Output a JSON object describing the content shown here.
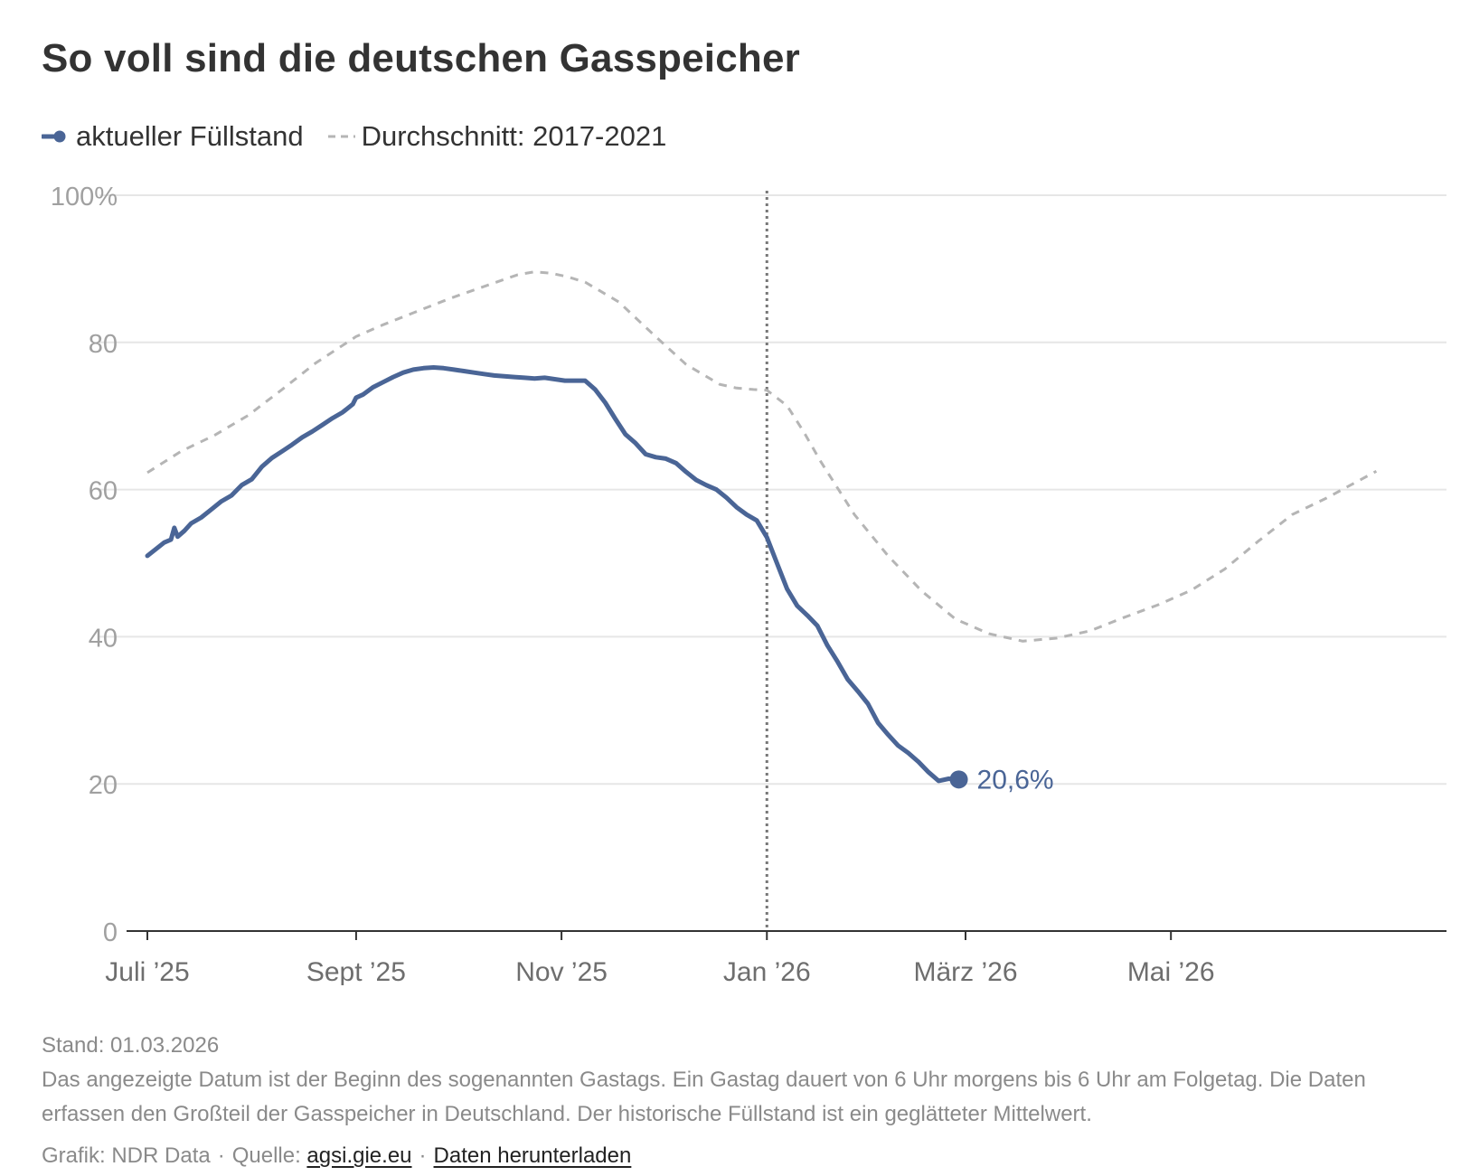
{
  "title": "So voll sind die deutschen Gasspeicher",
  "legend": {
    "current": "aktueller Füllstand",
    "average": "Durchschnitt: 2017-2021"
  },
  "colors": {
    "current": "#4a6596",
    "average": "#b5b5b5",
    "grid": "#e6e6e6",
    "axis": "#333333",
    "tick": "#a0a0a0"
  },
  "chart_data": {
    "type": "line",
    "title": "So voll sind die deutschen Gasspeicher",
    "xlabel": "",
    "ylabel": "",
    "ylim": [
      0,
      100
    ],
    "y_ticks": [
      0,
      20,
      40,
      60,
      80,
      100
    ],
    "y_tick_labels": [
      "0",
      "20",
      "40",
      "60",
      "80",
      "100%"
    ],
    "x_unit": "days since 2025-07-01",
    "x_ticks": [
      0,
      62,
      123,
      184,
      243,
      304
    ],
    "x_tick_labels": [
      "Juli ’25",
      "Sept ’25",
      "Nov ’25",
      "Jan ’26",
      "März ’26",
      "Mai ’26"
    ],
    "xlim": [
      -5,
      370
    ],
    "reference_line_x": 184,
    "end_label": "20,6%",
    "series": [
      {
        "name": "aktueller Füllstand",
        "x": [
          0,
          5,
          7,
          8,
          9,
          11,
          13,
          16,
          19,
          22,
          25,
          28,
          31,
          34,
          37,
          40,
          43,
          46,
          49,
          52,
          55,
          58,
          61,
          62,
          64,
          67,
          70,
          73,
          76,
          79,
          82,
          85,
          88,
          91,
          94,
          97,
          100,
          103,
          106,
          109,
          112,
          115,
          118,
          121,
          124,
          127,
          130,
          133,
          136,
          139,
          142,
          145,
          148,
          151,
          154,
          157,
          160,
          163,
          166,
          169,
          172,
          175,
          178,
          181,
          184,
          187,
          190,
          193,
          196,
          199,
          202,
          205,
          208,
          211,
          214,
          217,
          220,
          223,
          226,
          229,
          232,
          235,
          238,
          241
        ],
        "values": [
          51.0,
          52.8,
          53.2,
          54.8,
          53.6,
          54.4,
          55.4,
          56.2,
          57.3,
          58.4,
          59.2,
          60.6,
          61.4,
          63.1,
          64.3,
          65.2,
          66.1,
          67.1,
          67.9,
          68.8,
          69.7,
          70.5,
          71.6,
          72.5,
          72.9,
          73.9,
          74.6,
          75.3,
          75.9,
          76.3,
          76.5,
          76.6,
          76.5,
          76.3,
          76.1,
          75.9,
          75.7,
          75.5,
          75.4,
          75.3,
          75.2,
          75.1,
          75.2,
          75.0,
          74.8,
          74.8,
          74.8,
          73.6,
          71.8,
          69.6,
          67.5,
          66.3,
          64.8,
          64.4,
          64.2,
          63.6,
          62.4,
          61.3,
          60.6,
          60.0,
          58.9,
          57.6,
          56.6,
          55.8,
          53.5,
          50.0,
          46.5,
          44.2,
          42.9,
          41.5,
          38.8,
          36.6,
          34.2,
          32.6,
          30.9,
          28.3,
          26.7,
          25.2,
          24.2,
          23.0,
          21.6,
          20.4,
          20.7,
          20.6
        ]
      },
      {
        "name": "Durchschnitt: 2017-2021",
        "x": [
          0,
          10,
          20,
          30,
          40,
          50,
          60,
          62,
          70,
          80,
          90,
          100,
          110,
          115,
          120,
          125,
          130,
          140,
          150,
          160,
          170,
          175,
          180,
          184,
          190,
          195,
          200,
          210,
          220,
          230,
          240,
          250,
          260,
          270,
          280,
          290,
          300,
          310,
          320,
          330,
          340,
          350,
          365
        ],
        "values": [
          62.3,
          65.2,
          67.4,
          70.1,
          73.6,
          77.2,
          80.2,
          80.8,
          82.4,
          84.2,
          86.0,
          87.6,
          89.2,
          89.6,
          89.4,
          88.9,
          88.2,
          85.5,
          81.2,
          77.0,
          74.3,
          73.8,
          73.6,
          73.5,
          71.4,
          67.8,
          63.8,
          56.6,
          51.0,
          46.2,
          42.4,
          40.4,
          39.4,
          39.8,
          40.8,
          42.6,
          44.3,
          46.3,
          49.2,
          53.0,
          56.6,
          58.8,
          62.5
        ]
      }
    ]
  },
  "footer": {
    "stand": "Stand: 01.03.2026",
    "note": "Das angezeigte Datum ist der Beginn des sogenannten Gastags. Ein Gastag dauert von 6 Uhr morgens bis 6 Uhr am Folgetag. Die Daten erfassen den Großteil der Gasspeicher in Deutschland. Der historische Füllstand ist ein geglätteter Mittelwert.",
    "grafik": "Grafik: NDR Data",
    "quelle_prefix": "Quelle:",
    "quelle_link": "agsi.gie.eu",
    "dot": "·",
    "download": "Daten herunterladen"
  }
}
